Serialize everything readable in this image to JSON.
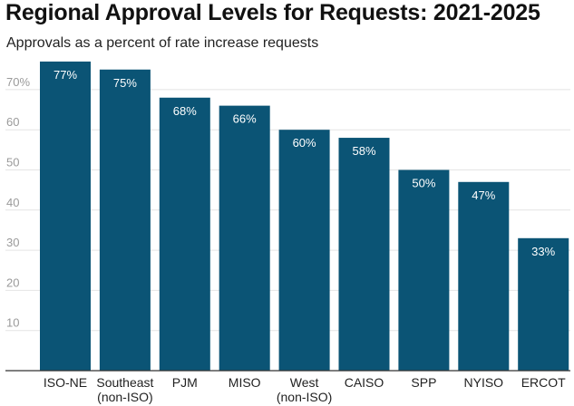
{
  "chart_data": {
    "type": "bar",
    "title": "Regional Approval Levels for Requests: 2021-2025",
    "subtitle": "Approvals as a percent of rate increase requests",
    "categories": [
      [
        "ISO-NE"
      ],
      [
        "Southeast",
        "(non-ISO)"
      ],
      [
        "PJM"
      ],
      [
        "MISO"
      ],
      [
        "West",
        "(non-ISO)"
      ],
      [
        "CAISO"
      ],
      [
        "SPP"
      ],
      [
        "NYISO"
      ],
      [
        "ERCOT"
      ]
    ],
    "values": [
      77,
      75,
      68,
      66,
      60,
      58,
      50,
      47,
      33
    ],
    "data_labels": [
      "77%",
      "75%",
      "68%",
      "66%",
      "60%",
      "58%",
      "50%",
      "47%",
      "33%"
    ],
    "y_ticks": [
      "70%",
      "60",
      "50",
      "40",
      "30",
      "20",
      "10"
    ],
    "y_tick_values": [
      70,
      60,
      50,
      40,
      30,
      20,
      10
    ],
    "ylim": [
      0,
      77
    ],
    "grid": true,
    "bar_color": "#0b5475",
    "grid_color": "#e4e4e4"
  }
}
